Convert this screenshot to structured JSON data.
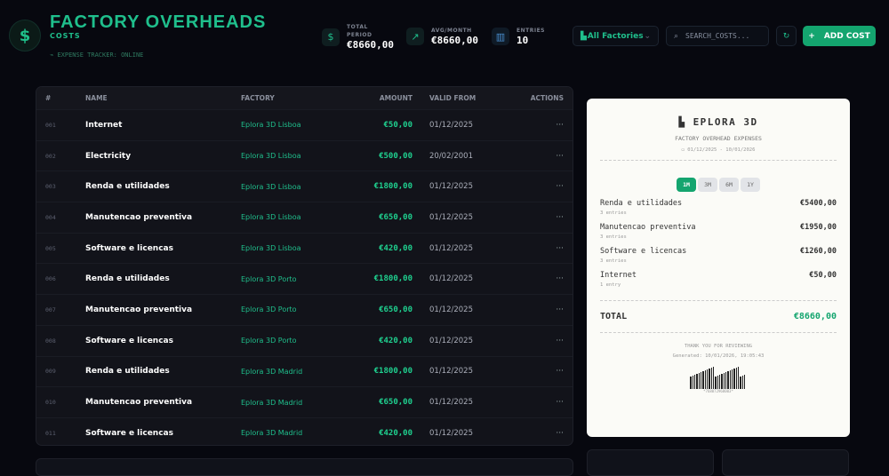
{
  "header": {
    "title": "FACTORY OVERHEADS",
    "subtitle": "COSTS",
    "status": "EXPENSE TRACKER: ONLINE"
  },
  "stats": [
    {
      "label1": "TOTAL",
      "label2": "PERIOD",
      "value": "€8660,00",
      "icon": "dollar-icon"
    },
    {
      "label1": "AVG/MONTH",
      "value": "€8660,00",
      "icon": "trending-up-icon"
    },
    {
      "label1": "ENTRIES",
      "value": "10",
      "icon": "bar-chart-icon"
    }
  ],
  "controls": {
    "factory_select": "All Factories",
    "search_placeholder": "SEARCH_COSTS...",
    "add_label": "ADD COST"
  },
  "table": {
    "columns": [
      "#",
      "NAME",
      "FACTORY",
      "AMOUNT",
      "VALID FROM",
      "ACTIONS"
    ],
    "rows": [
      [
        "001",
        "Internet",
        "Eplora 3D Lisboa",
        "€50,00",
        "01/12/2025"
      ],
      [
        "002",
        "Electricity",
        "Eplora 3D Lisboa",
        "€500,00",
        "20/02/2001"
      ],
      [
        "003",
        "Renda e utilidades",
        "Eplora 3D Lisboa",
        "€1800,00",
        "01/12/2025"
      ],
      [
        "004",
        "Manutencao preventiva",
        "Eplora 3D Lisboa",
        "€650,00",
        "01/12/2025"
      ],
      [
        "005",
        "Software e licencas",
        "Eplora 3D Lisboa",
        "€420,00",
        "01/12/2025"
      ],
      [
        "006",
        "Renda e utilidades",
        "Eplora 3D Porto",
        "€1800,00",
        "01/12/2025"
      ],
      [
        "007",
        "Manutencao preventiva",
        "Eplora 3D Porto",
        "€650,00",
        "01/12/2025"
      ],
      [
        "008",
        "Software e licencas",
        "Eplora 3D Porto",
        "€420,00",
        "01/12/2025"
      ],
      [
        "009",
        "Renda e utilidades",
        "Eplora 3D Madrid",
        "€1800,00",
        "01/12/2025"
      ],
      [
        "010",
        "Manutencao preventiva",
        "Eplora 3D Madrid",
        "€650,00",
        "01/12/2025"
      ],
      [
        "011",
        "Software e licencas",
        "Eplora 3D Madrid",
        "€420,00",
        "01/12/2025"
      ]
    ],
    "actions_label": "···"
  },
  "receipt": {
    "brand": "EPLORA 3D",
    "subtitle": "FACTORY OVERHEAD EXPENSES",
    "date_range": "01/12/2025 - 10/01/2026",
    "periods": [
      "1M",
      "3M",
      "6M",
      "1Y"
    ],
    "active_period": "1M",
    "items": [
      {
        "name": "Renda e utilidades",
        "count": "3 entries",
        "amount": "€5400,00"
      },
      {
        "name": "Manutencao preventiva",
        "count": "3 entries",
        "amount": "€1950,00"
      },
      {
        "name": "Software e licencas",
        "count": "3 entries",
        "amount": "€1260,00"
      },
      {
        "name": "Internet",
        "count": "1 entry",
        "amount": "€50,00"
      }
    ],
    "total_label": "TOTAL",
    "total": "€8660,00",
    "thanks": "THANK YOU FOR REVIEWING",
    "generated": "Generated: 10/01/2026, 19:05:43",
    "barcode_text": "*768072968003*"
  },
  "colors": {
    "accent": "#1fbf8c",
    "button": "#14a56f",
    "background": "#07080f"
  }
}
